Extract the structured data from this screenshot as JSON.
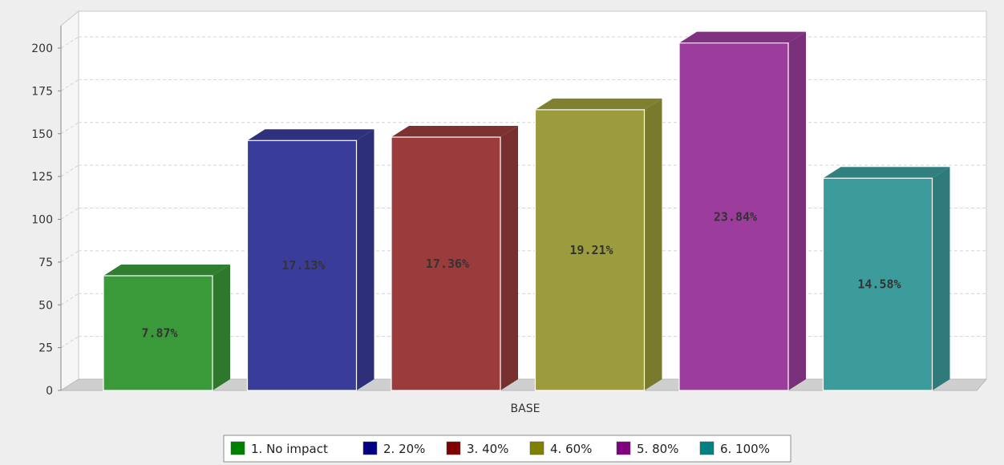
{
  "chart_data": {
    "type": "bar",
    "categories": [
      "BASE"
    ],
    "series": [
      {
        "name": "1. No impact",
        "values": [
          67
        ],
        "label": "7.87%",
        "color": "#3a9a3a"
      },
      {
        "name": "2. 20%",
        "values": [
          146
        ],
        "label": "17.13%",
        "color": "#3a3c9a"
      },
      {
        "name": "3. 40%",
        "values": [
          148
        ],
        "label": "17.36%",
        "color": "#9a3c3c"
      },
      {
        "name": "4. 60%",
        "values": [
          164
        ],
        "label": "19.21%",
        "color": "#9c9c3c"
      },
      {
        "name": "5. 80%",
        "values": [
          203
        ],
        "label": "23.84%",
        "color": "#9c3c9c"
      },
      {
        "name": "6. 100%",
        "values": [
          124
        ],
        "label": "14.58%",
        "color": "#3c9c9c"
      }
    ],
    "legend_colors": [
      "#008000",
      "#000080",
      "#800000",
      "#808000",
      "#800080",
      "#008080"
    ],
    "yticks": [
      "0",
      "25",
      "50",
      "75",
      "100",
      "125",
      "150",
      "175",
      "200"
    ],
    "ylim": [
      0,
      200
    ],
    "grid": true,
    "style": "3d",
    "legend_position": "bottom"
  }
}
